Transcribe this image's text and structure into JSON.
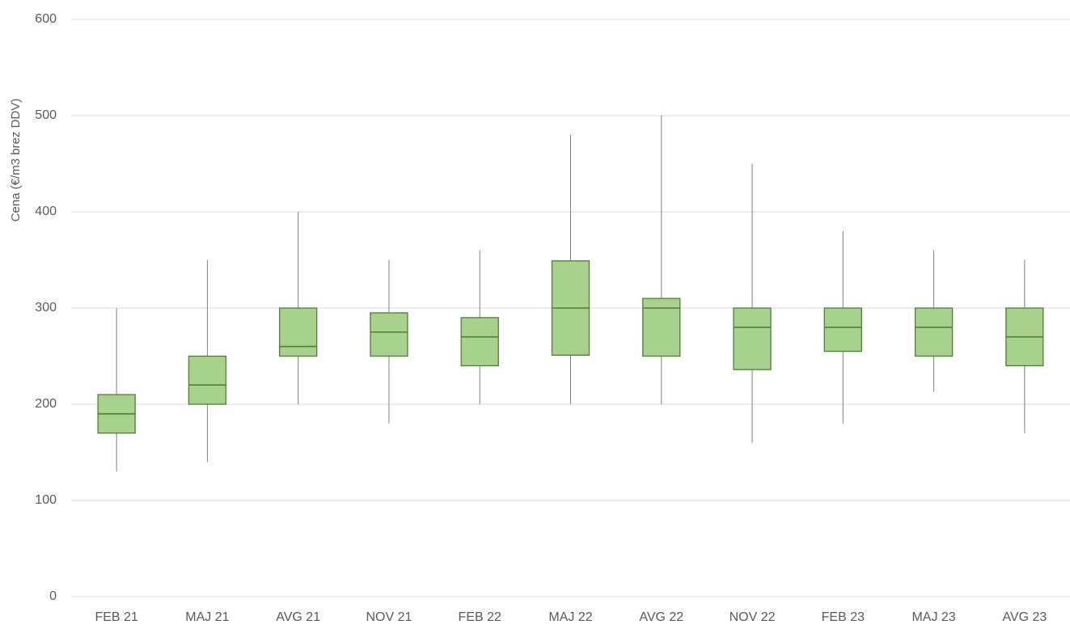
{
  "chart_data": {
    "type": "box",
    "y_label": "Cena (€/m3 brez DDV)",
    "categories": [
      "FEB 21",
      "MAJ 21",
      "AVG 21",
      "NOV 21",
      "FEB 22",
      "MAJ 22",
      "AVG 22",
      "NOV 22",
      "FEB 23",
      "MAJ 23",
      "AVG 23"
    ],
    "min": [
      130,
      140,
      200,
      180,
      200,
      200,
      200,
      160,
      180,
      213,
      170
    ],
    "q1": [
      170,
      200,
      250,
      250,
      240,
      251,
      250,
      236,
      255,
      250,
      240
    ],
    "median": [
      190,
      220,
      260,
      275,
      270,
      300,
      300,
      280,
      280,
      280,
      270
    ],
    "q3": [
      210,
      250,
      300,
      295,
      290,
      349,
      310,
      300,
      300,
      300,
      300
    ],
    "max": [
      300,
      350,
      400,
      350,
      360,
      480,
      500,
      450,
      380,
      360,
      350
    ],
    "color": "#a9d18e",
    "edge_color": "#507e32",
    "whisker_color": "#7f7f7f",
    "ylim": [
      0,
      600
    ],
    "yticks": [
      0,
      100,
      200,
      300,
      400,
      500,
      600
    ],
    "grid": true
  }
}
